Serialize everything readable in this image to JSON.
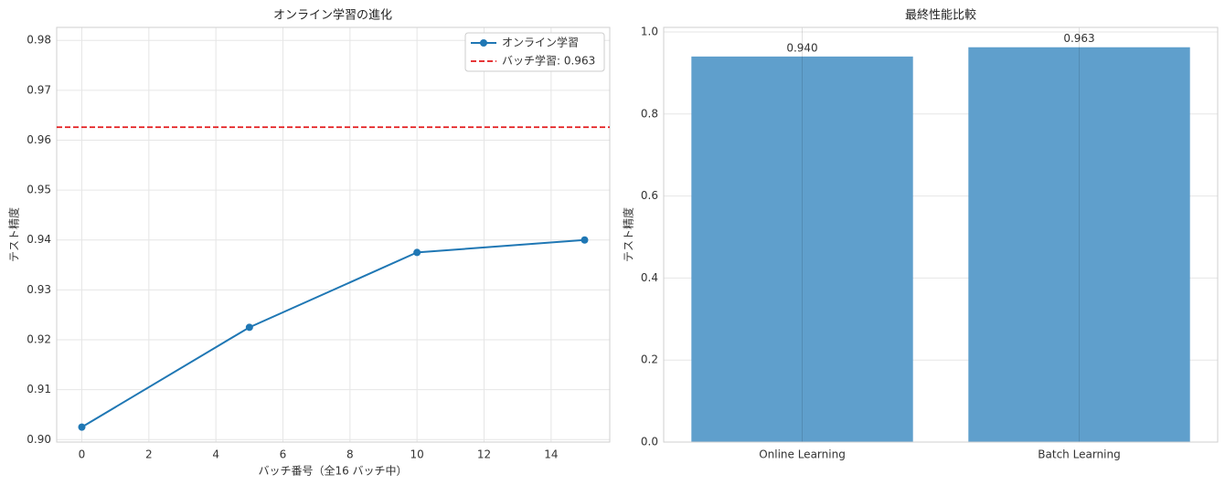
{
  "chart_data": [
    {
      "type": "line",
      "title": "オンライン学習の進化",
      "x_label": "バッチ番号（全16 バッチ中）",
      "y_label": "テスト精度",
      "x": [
        0,
        5,
        10,
        15
      ],
      "series": [
        {
          "name": "オンライン学習",
          "color": "#1f77b4",
          "values": [
            0.9025,
            0.9225,
            0.9375,
            0.94
          ]
        }
      ],
      "reference_lines": [
        {
          "name": "バッチ学習: 0.963",
          "color": "#e31a1c",
          "value": 0.9626
        }
      ],
      "xlim": [
        -0.75,
        15.75
      ],
      "xticks": [
        0,
        2,
        4,
        6,
        8,
        10,
        12,
        14
      ],
      "ylim": [
        0.8995,
        0.9826
      ],
      "yticks": [
        {
          "value": 0.9,
          "label": "0.90"
        },
        {
          "value": 0.91,
          "label": "0.91"
        },
        {
          "value": 0.92,
          "label": "0.92"
        },
        {
          "value": 0.93,
          "label": "0.93"
        },
        {
          "value": 0.94,
          "label": "0.94"
        },
        {
          "value": 0.95,
          "label": "0.95"
        },
        {
          "value": 0.96,
          "label": "0.96"
        },
        {
          "value": 0.97,
          "label": "0.97"
        },
        {
          "value": 0.98,
          "label": "0.98"
        }
      ],
      "grid": true,
      "legend": "upper right"
    },
    {
      "type": "bar",
      "title": "最終性能比較",
      "y_label": "テスト精度",
      "categories": [
        "Online Learning",
        "Batch Learning"
      ],
      "values": [
        0.94,
        0.9626
      ],
      "value_labels": [
        "0.940",
        "0.963"
      ],
      "color": "#5f9fcc",
      "ylim": [
        0,
        1.011
      ],
      "yticks": [
        {
          "value": 0,
          "label": "0.0"
        },
        {
          "value": 0.2,
          "label": "0.2"
        },
        {
          "value": 0.4,
          "label": "0.4"
        },
        {
          "value": 0.6,
          "label": "0.6"
        },
        {
          "value": 0.8,
          "label": "0.8"
        },
        {
          "value": 1.0,
          "label": "1.0"
        }
      ],
      "grid": true
    }
  ]
}
